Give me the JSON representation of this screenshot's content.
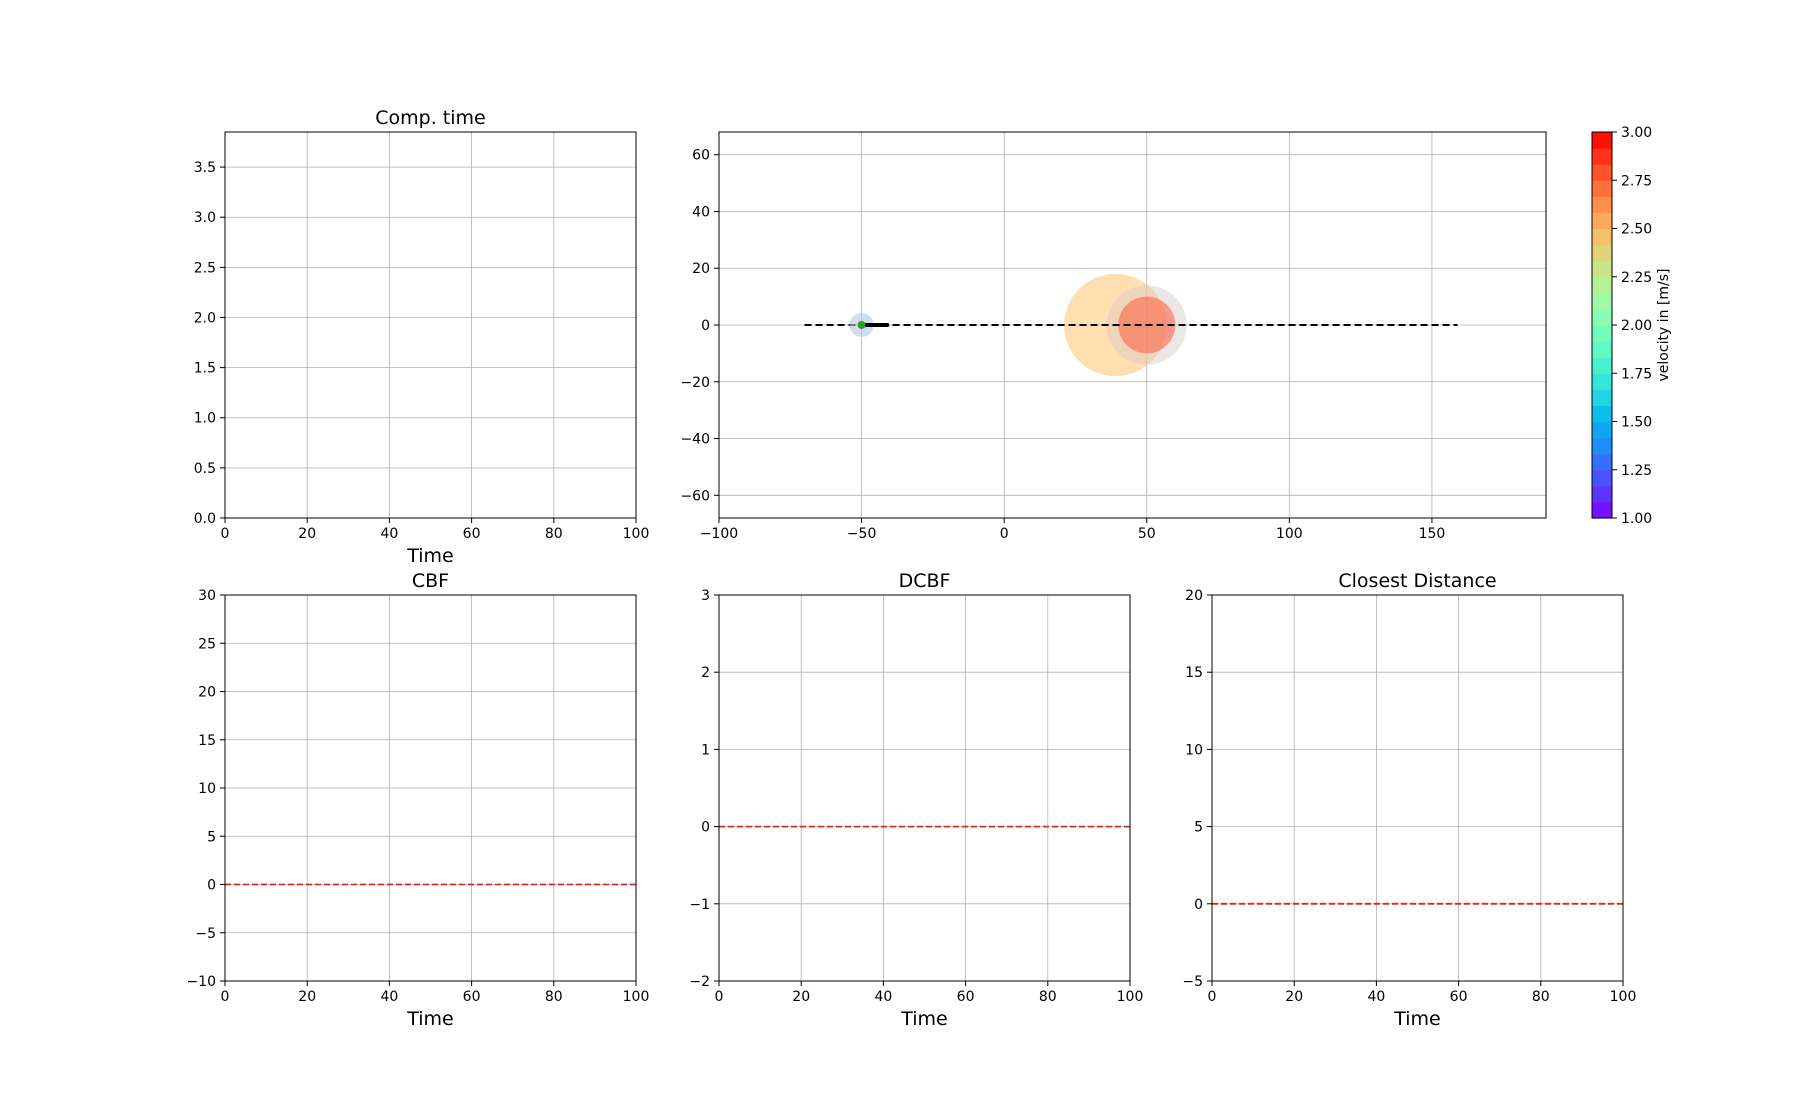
{
  "chart_data": [
    {
      "id": "comp_time",
      "type": "line",
      "title": "Comp. time",
      "xlabel": "Time",
      "ylabel": "",
      "xlim": [
        0,
        100
      ],
      "ylim": [
        0,
        3.85
      ],
      "xticks": [
        "0",
        "20",
        "40",
        "60",
        "80",
        "100"
      ],
      "xtick_values": [
        0,
        20,
        40,
        60,
        80,
        100
      ],
      "yticks": [
        "0.0",
        "0.5",
        "1.0",
        "1.5",
        "2.0",
        "2.5",
        "3.0",
        "3.5"
      ],
      "ytick_values": [
        0,
        0.5,
        1.0,
        1.5,
        2.0,
        2.5,
        3.0,
        3.5
      ],
      "grid": true,
      "series": [],
      "reference_lines": []
    },
    {
      "id": "map",
      "type": "scatter",
      "title": "",
      "xlabel": "",
      "ylabel": "",
      "xlim": [
        -100,
        190
      ],
      "ylim": [
        -68,
        68
      ],
      "xticks": [
        "−100",
        "−50",
        "0",
        "50",
        "100",
        "150"
      ],
      "xtick_values": [
        -100,
        -50,
        0,
        50,
        100,
        150
      ],
      "yticks": [
        "−60",
        "−40",
        "−20",
        "0",
        "20",
        "40",
        "60"
      ],
      "ytick_values": [
        -60,
        -40,
        -20,
        0,
        20,
        40,
        60
      ],
      "grid": true,
      "reference_path": {
        "x": [
          -70,
          159
        ],
        "y": [
          0,
          0
        ],
        "color": "#000000",
        "style": "dashed"
      },
      "obstacles": [
        {
          "x": 39,
          "y": 0,
          "r": 18,
          "color": "#ffc87a",
          "opacity": 0.6
        },
        {
          "x": 50,
          "y": 0,
          "r": 14,
          "color": "#d8c8c8",
          "opacity": 0.45
        },
        {
          "x": 50,
          "y": 0,
          "r": 10,
          "color": "#ff5a3c",
          "opacity": 0.55
        }
      ],
      "robot": {
        "x": -50,
        "y": 0,
        "trajectory_x": [
          -50,
          -41
        ],
        "trajectory_y": [
          0,
          0
        ],
        "color": "#2a9d2a",
        "halo_color": "#b4c8e6"
      },
      "colorbar": {
        "label": "velocity in [m/s]",
        "min": 1.0,
        "max": 3.0,
        "ticks": [
          "1.00",
          "1.25",
          "1.50",
          "1.75",
          "2.00",
          "2.25",
          "2.50",
          "2.75",
          "3.00"
        ],
        "tick_values": [
          1.0,
          1.25,
          1.5,
          1.75,
          2.0,
          2.25,
          2.5,
          2.75,
          3.0
        ],
        "colormap": "rainbow"
      }
    },
    {
      "id": "cbf",
      "type": "line",
      "title": "CBF",
      "xlabel": "Time",
      "ylabel": "",
      "xlim": [
        0,
        100
      ],
      "ylim": [
        -10,
        30
      ],
      "xticks": [
        "0",
        "20",
        "40",
        "60",
        "80",
        "100"
      ],
      "xtick_values": [
        0,
        20,
        40,
        60,
        80,
        100
      ],
      "yticks": [
        "−10",
        "−5",
        "0",
        "5",
        "10",
        "15",
        "20",
        "25",
        "30"
      ],
      "ytick_values": [
        -10,
        -5,
        0,
        5,
        10,
        15,
        20,
        25,
        30
      ],
      "grid": true,
      "series": [],
      "reference_lines": [
        {
          "y": 0,
          "color": "#e8231a",
          "style": "dashed"
        }
      ]
    },
    {
      "id": "dcbf",
      "type": "line",
      "title": "DCBF",
      "xlabel": "Time",
      "ylabel": "",
      "xlim": [
        0,
        100
      ],
      "ylim": [
        -2,
        3
      ],
      "xticks": [
        "0",
        "20",
        "40",
        "60",
        "80",
        "100"
      ],
      "xtick_values": [
        0,
        20,
        40,
        60,
        80,
        100
      ],
      "yticks": [
        "−2",
        "−1",
        "0",
        "1",
        "2",
        "3"
      ],
      "ytick_values": [
        -2,
        -1,
        0,
        1,
        2,
        3
      ],
      "grid": true,
      "series": [],
      "reference_lines": [
        {
          "y": 0,
          "color": "#e8231a",
          "style": "dashed"
        }
      ]
    },
    {
      "id": "closest",
      "type": "line",
      "title": "Closest Distance",
      "xlabel": "Time",
      "ylabel": "",
      "xlim": [
        0,
        100
      ],
      "ylim": [
        -5,
        20
      ],
      "xticks": [
        "0",
        "20",
        "40",
        "60",
        "80",
        "100"
      ],
      "xtick_values": [
        0,
        20,
        40,
        60,
        80,
        100
      ],
      "yticks": [
        "−5",
        "0",
        "5",
        "10",
        "15",
        "20"
      ],
      "ytick_values": [
        -5,
        0,
        5,
        10,
        15,
        20
      ],
      "grid": true,
      "series": [],
      "reference_lines": [
        {
          "y": 0,
          "color": "#e8231a",
          "style": "dashed"
        }
      ]
    }
  ]
}
